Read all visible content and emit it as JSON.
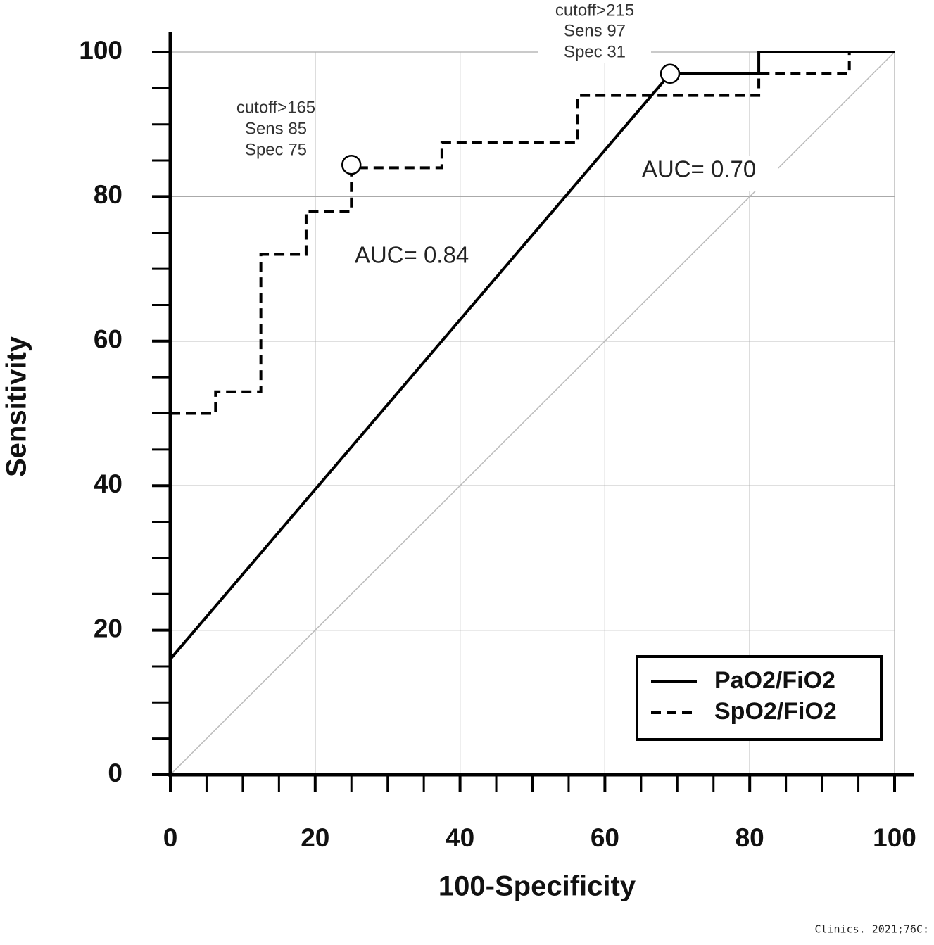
{
  "chart_data": {
    "type": "line",
    "xlabel": "100-Specificity",
    "ylabel": "Sensitivity",
    "xlim": [
      0,
      100
    ],
    "ylim": [
      0,
      100
    ],
    "xticks": [
      0,
      20,
      40,
      60,
      80,
      100
    ],
    "yticks": [
      0,
      20,
      40,
      60,
      80,
      100
    ],
    "xminorticks": [
      5,
      10,
      15,
      25,
      30,
      35,
      45,
      50,
      55,
      65,
      70,
      75,
      85,
      90,
      95
    ],
    "yminorticks": [
      5,
      10,
      15,
      25,
      30,
      35,
      45,
      50,
      55,
      65,
      70,
      75,
      85,
      90,
      95
    ],
    "grid": true,
    "legend": "lower right",
    "series": [
      {
        "name": "PaO2/FiO2",
        "color": "#000000",
        "style": "solid",
        "x": [
          0,
          69,
          81.25,
          81.25,
          100
        ],
        "values": [
          16,
          97,
          97,
          100,
          100
        ]
      },
      {
        "name": "SpO2/FiO2",
        "color": "#000000",
        "style": "dashed",
        "x": [
          0,
          6.25,
          6.25,
          12.5,
          12.5,
          18.75,
          18.75,
          25,
          25,
          37.5,
          37.5,
          56.25,
          56.25,
          81.25,
          81.25,
          93.75,
          93.75,
          100
        ],
        "values": [
          50,
          50,
          53,
          53,
          72,
          72,
          78,
          78,
          84,
          84,
          87.5,
          87.5,
          94,
          94,
          97,
          97,
          100,
          100
        ]
      }
    ],
    "markers": [
      {
        "x": 25,
        "y": 84.4
      },
      {
        "x": 69,
        "y": 97
      }
    ],
    "annotations": [
      {
        "lines": [
          "cutoff>165",
          "Sens 85",
          "Spec 75"
        ]
      },
      {
        "lines": [
          "cutoff>215",
          "Sens 97",
          "Spec 31"
        ]
      },
      {
        "text": "AUC= 0.84"
      },
      {
        "text": "AUC= 0.70"
      }
    ],
    "source": "Clinics. 2021;76C:"
  }
}
